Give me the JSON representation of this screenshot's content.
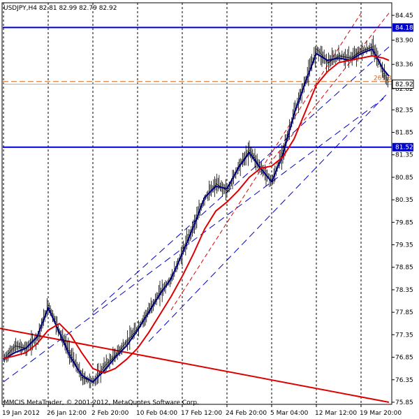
{
  "chart_data": {
    "type": "line",
    "title": "USDJPY,H4  82.81 82.99 82.79 82.92",
    "copyright": "MMCIS MetaTrader, © 2001-2012, MetaQuotes Software Corp.",
    "ylim": [
      75.7,
      84.5
    ],
    "price_ticks": [
      84.45,
      83.9,
      83.36,
      82.82,
      82.35,
      81.85,
      81.35,
      80.85,
      80.35,
      79.85,
      79.35,
      78.85,
      78.35,
      77.85,
      77.35,
      76.85,
      76.35,
      75.85
    ],
    "time_labels": [
      "19 Jan 2012",
      "26 Jan 12:00",
      "2 Feb 20:00",
      "10 Feb 04:00",
      "17 Feb 12:00",
      "24 Feb 20:00",
      "5 Mar 04:00",
      "12 Mar 12:00",
      "19 Mar 20:00"
    ],
    "time_label_index": [
      0,
      40,
      80,
      120,
      160,
      200,
      240,
      280,
      320
    ],
    "bar_count": 345,
    "levels": [
      {
        "value": 84.18,
        "label": "84.18",
        "color": "#0000cc"
      },
      {
        "value": 81.52,
        "label": "81.52",
        "color": "#0000cc"
      }
    ],
    "fib_level": {
      "value": 82.98,
      "label": "261.8",
      "color": "#d2691e"
    },
    "current_price": {
      "value": 82.92,
      "label": "82.92"
    },
    "series": [
      {
        "name": "",
        "kind": "price-bars",
        "color": "#000000",
        "x": [
          0,
          10,
          20,
          30,
          40,
          50,
          60,
          70,
          80,
          90,
          100,
          110,
          120,
          130,
          140,
          150,
          160,
          170,
          180,
          190,
          200,
          210,
          220,
          230,
          240,
          250,
          260,
          270,
          280,
          290,
          300,
          310,
          320,
          330,
          340,
          345
        ],
        "values": [
          76.82,
          77.1,
          77.05,
          77.3,
          78.0,
          77.4,
          76.9,
          76.4,
          76.3,
          76.65,
          76.9,
          77.2,
          77.5,
          77.9,
          78.3,
          78.6,
          79.2,
          79.8,
          80.4,
          80.7,
          80.55,
          81.1,
          81.45,
          81.05,
          80.75,
          81.45,
          82.3,
          83.0,
          83.7,
          83.4,
          83.55,
          83.5,
          83.65,
          83.75,
          83.15,
          82.92
        ]
      },
      {
        "name": "",
        "kind": "fast-ma",
        "color": "#000080",
        "x": [
          0,
          10,
          20,
          30,
          40,
          50,
          60,
          70,
          80,
          90,
          100,
          110,
          120,
          130,
          140,
          150,
          160,
          170,
          180,
          190,
          200,
          210,
          220,
          230,
          240,
          250,
          260,
          270,
          280,
          290,
          300,
          310,
          320,
          330,
          340,
          345
        ],
        "values": [
          76.8,
          76.95,
          77.05,
          77.3,
          77.95,
          77.4,
          76.85,
          76.45,
          76.3,
          76.55,
          76.85,
          77.1,
          77.45,
          77.85,
          78.25,
          78.6,
          79.15,
          79.75,
          80.4,
          80.65,
          80.6,
          81.05,
          81.4,
          81.05,
          80.75,
          81.35,
          82.25,
          82.95,
          83.6,
          83.45,
          83.5,
          83.45,
          83.6,
          83.7,
          83.25,
          83.1
        ]
      },
      {
        "name": "",
        "kind": "slow-ma",
        "color": "#dd0000",
        "x": [
          0,
          10,
          20,
          30,
          40,
          50,
          60,
          70,
          80,
          90,
          100,
          110,
          120,
          130,
          140,
          150,
          160,
          170,
          180,
          190,
          200,
          210,
          220,
          230,
          240,
          250,
          260,
          270,
          280,
          290,
          300,
          310,
          320,
          330,
          340,
          345
        ],
        "values": [
          76.82,
          76.88,
          76.95,
          77.15,
          77.45,
          77.6,
          77.35,
          76.95,
          76.6,
          76.5,
          76.6,
          76.8,
          77.05,
          77.4,
          77.8,
          78.2,
          78.65,
          79.15,
          79.7,
          80.1,
          80.3,
          80.55,
          80.85,
          81.05,
          81.1,
          81.3,
          81.7,
          82.3,
          82.9,
          83.2,
          83.4,
          83.45,
          83.5,
          83.55,
          83.5,
          83.45
        ]
      }
    ],
    "trendlines": [
      {
        "x1": -5,
        "y1": 77.5,
        "x2": 345,
        "y2": 75.85,
        "color": "#dd0000",
        "dash": "",
        "width": 2
      },
      {
        "x1": 0,
        "y1": 76.3,
        "x2": 340,
        "y2": 82.6,
        "color": "#0000cc",
        "dash": "10,6",
        "width": 1
      },
      {
        "x1": 80,
        "y1": 77.85,
        "x2": 345,
        "y2": 83.75,
        "color": "#0000cc",
        "dash": "10,6",
        "width": 1
      },
      {
        "x1": 130,
        "y1": 77.2,
        "x2": 345,
        "y2": 82.75,
        "color": "#0000cc",
        "dash": "10,6",
        "width": 1
      },
      {
        "x1": 150,
        "y1": 77.9,
        "x2": 320,
        "y2": 84.5,
        "color": "#dd0000",
        "dash": "6,4",
        "width": 1
      },
      {
        "x1": 230,
        "y1": 80.9,
        "x2": 345,
        "y2": 84.5,
        "color": "#dd0000",
        "dash": "6,4",
        "width": 1
      }
    ]
  }
}
